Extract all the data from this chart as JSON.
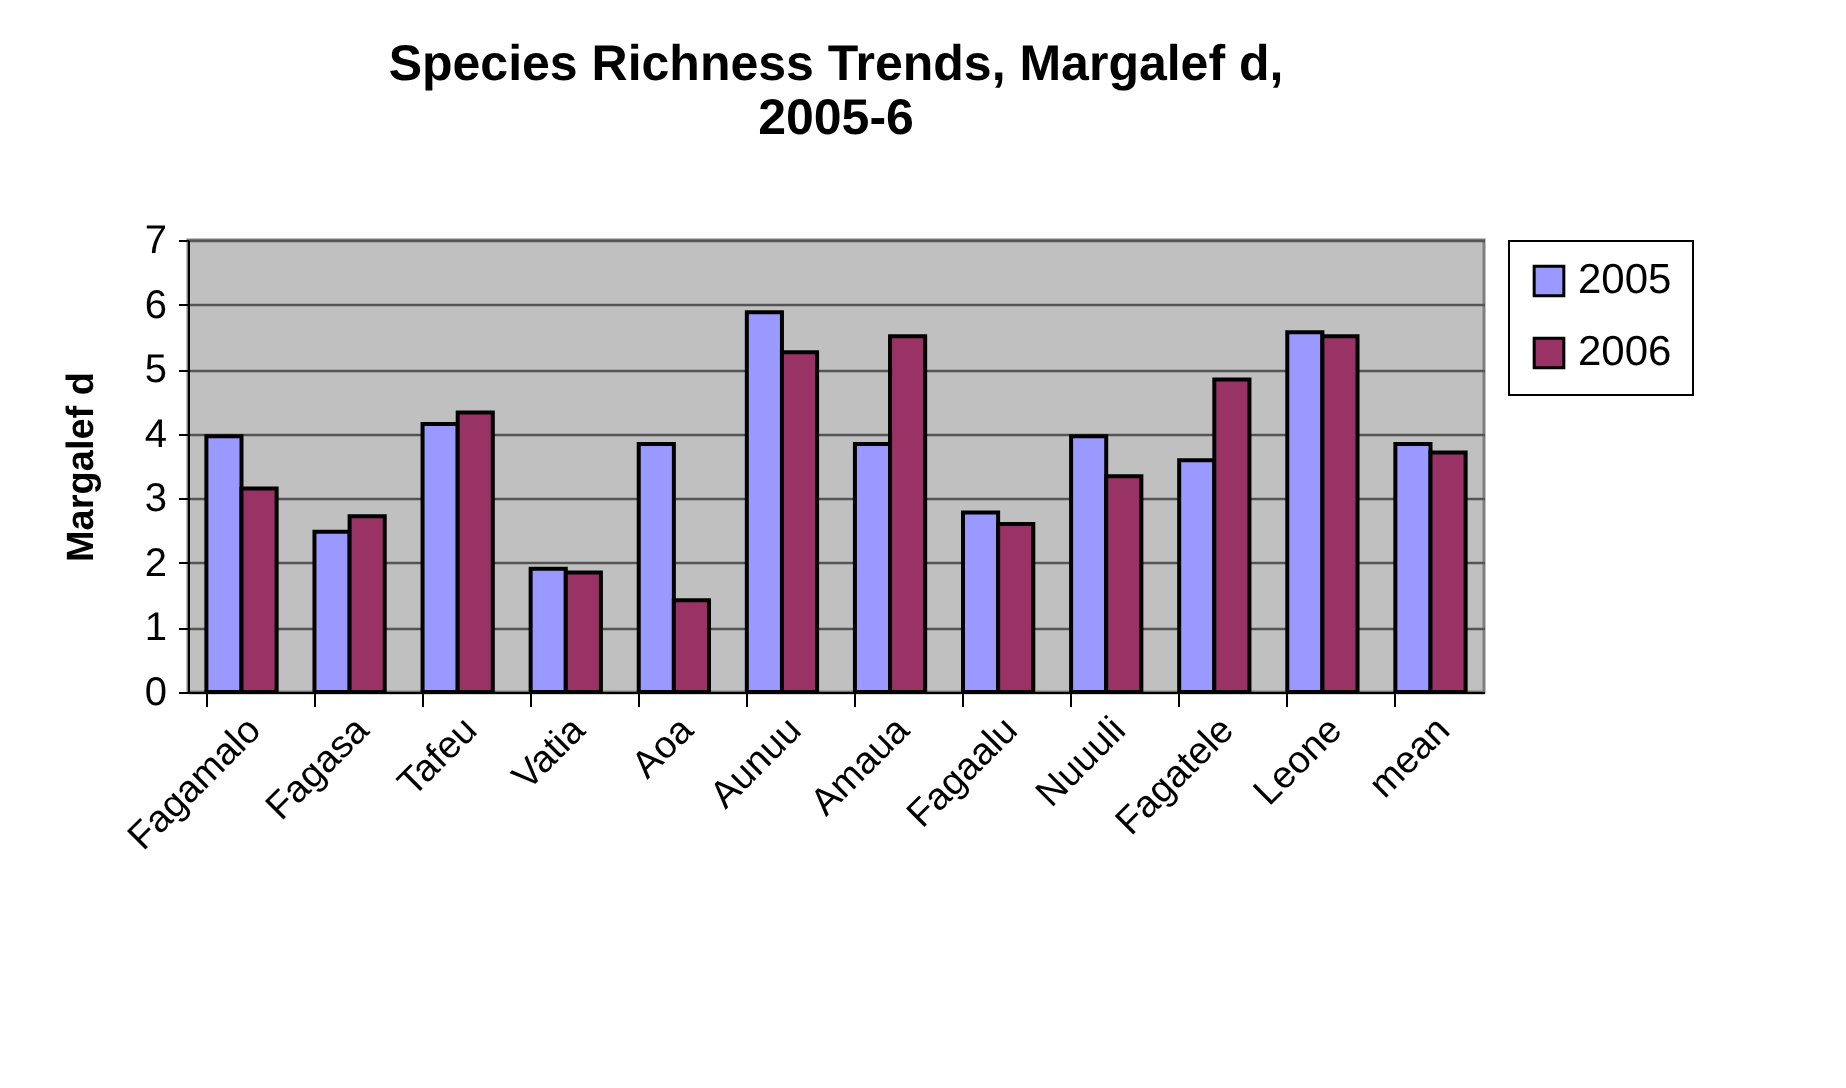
{
  "chart_data": {
    "type": "bar",
    "title": "Species Richness Trends, Margalef d, 2005-6",
    "ylabel": "Margalef d",
    "categories": [
      "Fagamalo",
      "Fagasa",
      "Tafeu",
      "Vatia",
      "Aoa",
      "Aunuu",
      "Amaua",
      "Fagaalu",
      "Nuuuli",
      "Fagatele",
      "Leone",
      "mean"
    ],
    "series": [
      {
        "name": "2005",
        "color": "#9999ff",
        "values": [
          3.96,
          2.48,
          4.15,
          1.91,
          3.84,
          5.88,
          3.84,
          2.78,
          3.96,
          3.59,
          5.57,
          3.84
        ]
      },
      {
        "name": "2006",
        "color": "#993366",
        "values": [
          3.15,
          2.72,
          4.33,
          1.85,
          1.42,
          5.26,
          5.51,
          2.6,
          3.34,
          4.84,
          5.51,
          3.71
        ]
      }
    ],
    "ylim": [
      0,
      7
    ],
    "yticks": [
      0,
      1,
      2,
      3,
      4,
      5,
      6,
      7
    ],
    "grid": "y",
    "legend": "right"
  }
}
